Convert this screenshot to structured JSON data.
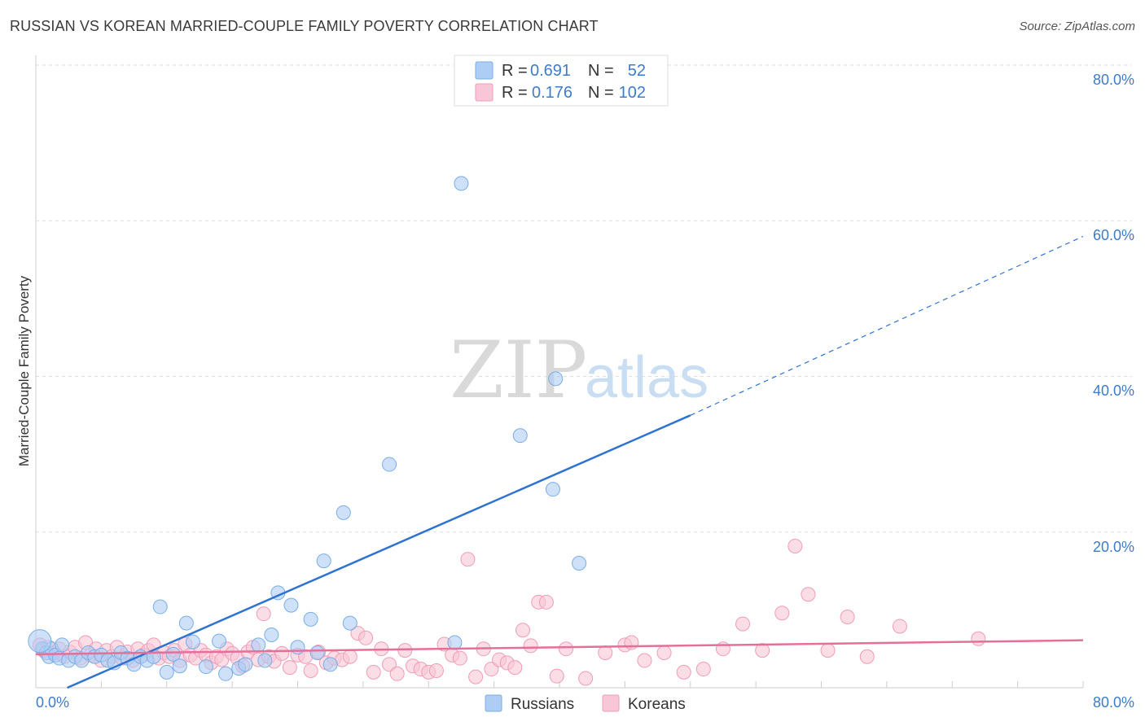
{
  "title": "RUSSIAN VS KOREAN MARRIED-COUPLE FAMILY POVERTY CORRELATION CHART",
  "source": "Source: ZipAtlas.com",
  "watermark": {
    "zip": "ZIP",
    "atlas": "atlas"
  },
  "colors": {
    "russians_fill": "#aecdf4",
    "russians_stroke": "#7aaee6",
    "russians_line": "#2f73d0",
    "koreans_fill": "#f8c6d6",
    "koreans_stroke": "#ef9db7",
    "koreans_line": "#e4709a",
    "tick_text": "#3d7cc9",
    "grid": "#dddddd"
  },
  "legend": {
    "russians": {
      "r_label": "R = ",
      "r_value": "0.691",
      "n_label": "N = ",
      "n_value": "52"
    },
    "koreans": {
      "r_label": "R = ",
      "r_value": "0.176",
      "n_label": "N = ",
      "n_value": "102"
    }
  },
  "chart_data": {
    "type": "scatter",
    "title": "RUSSIAN VS KOREAN MARRIED-COUPLE FAMILY POVERTY CORRELATION CHART",
    "xlabel": "",
    "ylabel": "Married-Couple Family Poverty",
    "xlim": [
      0,
      80
    ],
    "ylim": [
      0,
      80
    ],
    "x_tick_labels": [
      "0.0%",
      "80.0%"
    ],
    "y_tick_labels": [
      "20.0%",
      "40.0%",
      "60.0%",
      "80.0%"
    ],
    "y_ticks": [
      20,
      40,
      60,
      80
    ],
    "series": [
      {
        "name": "Russians",
        "R": 0.691,
        "N": 52,
        "trend": {
          "x0": 2.4,
          "y0": 0.0,
          "x1": 50.0,
          "y1": 35.0,
          "dash_to_x": 80.0,
          "dash_to_y": 58.0
        },
        "points": [
          [
            0.5,
            5.0
          ],
          [
            0.8,
            4.5
          ],
          [
            1.0,
            4.0
          ],
          [
            1.2,
            5.0
          ],
          [
            1.5,
            4.2
          ],
          [
            1.8,
            3.8
          ],
          [
            2.0,
            5.5
          ],
          [
            2.5,
            3.5
          ],
          [
            3.0,
            4.0
          ],
          [
            3.5,
            3.5
          ],
          [
            4.0,
            4.5
          ],
          [
            4.5,
            4.0
          ],
          [
            5.0,
            4.2
          ],
          [
            5.5,
            3.5
          ],
          [
            6.0,
            3.2
          ],
          [
            6.5,
            4.5
          ],
          [
            7.0,
            3.8
          ],
          [
            7.5,
            3.0
          ],
          [
            8.0,
            4.0
          ],
          [
            8.5,
            3.5
          ],
          [
            9.0,
            4.0
          ],
          [
            9.5,
            10.4
          ],
          [
            10.0,
            2.0
          ],
          [
            10.5,
            4.3
          ],
          [
            11.0,
            2.8
          ],
          [
            11.5,
            8.3
          ],
          [
            12.0,
            5.9
          ],
          [
            13.0,
            2.7
          ],
          [
            14.0,
            6.0
          ],
          [
            14.5,
            1.8
          ],
          [
            15.5,
            2.5
          ],
          [
            16.0,
            3.0
          ],
          [
            17.0,
            5.5
          ],
          [
            17.5,
            3.5
          ],
          [
            18.0,
            6.8
          ],
          [
            18.5,
            12.2
          ],
          [
            19.5,
            10.6
          ],
          [
            20.0,
            5.2
          ],
          [
            21.0,
            8.8
          ],
          [
            21.5,
            4.5
          ],
          [
            22.0,
            16.3
          ],
          [
            22.5,
            3.0
          ],
          [
            23.5,
            22.5
          ],
          [
            24.0,
            8.3
          ],
          [
            27.0,
            28.7
          ],
          [
            32.0,
            5.8
          ],
          [
            32.5,
            64.8
          ],
          [
            37.0,
            32.4
          ],
          [
            39.5,
            25.5
          ],
          [
            39.7,
            39.7
          ],
          [
            41.5,
            16.0
          ],
          [
            0.3,
            6.0
          ]
        ]
      },
      {
        "name": "Koreans",
        "R": 0.176,
        "N": 102,
        "trend": {
          "x0": 0.0,
          "y0": 4.3,
          "x1": 80.0,
          "y1": 6.1
        },
        "points": [
          [
            0.3,
            5.5
          ],
          [
            0.6,
            4.8
          ],
          [
            1.0,
            5.2
          ],
          [
            1.4,
            4.5
          ],
          [
            1.8,
            5.0
          ],
          [
            2.2,
            4.0
          ],
          [
            2.6,
            4.6
          ],
          [
            3.0,
            5.2
          ],
          [
            3.4,
            3.8
          ],
          [
            3.8,
            5.8
          ],
          [
            4.2,
            4.2
          ],
          [
            4.6,
            5.0
          ],
          [
            5.0,
            3.5
          ],
          [
            5.4,
            4.8
          ],
          [
            5.8,
            4.0
          ],
          [
            6.2,
            5.2
          ],
          [
            6.6,
            3.8
          ],
          [
            7.0,
            4.6
          ],
          [
            7.4,
            3.5
          ],
          [
            7.8,
            5.0
          ],
          [
            8.2,
            4.2
          ],
          [
            8.6,
            4.8
          ],
          [
            9.0,
            5.5
          ],
          [
            9.4,
            3.8
          ],
          [
            9.8,
            4.5
          ],
          [
            10.2,
            4.0
          ],
          [
            10.6,
            4.8
          ],
          [
            11.0,
            3.5
          ],
          [
            11.4,
            5.6
          ],
          [
            11.8,
            4.2
          ],
          [
            12.2,
            3.8
          ],
          [
            12.6,
            4.8
          ],
          [
            13.0,
            4.2
          ],
          [
            13.4,
            3.2
          ],
          [
            13.8,
            4.0
          ],
          [
            14.2,
            3.6
          ],
          [
            14.6,
            5.0
          ],
          [
            15.0,
            4.4
          ],
          [
            15.4,
            3.8
          ],
          [
            15.8,
            2.8
          ],
          [
            16.2,
            4.6
          ],
          [
            16.6,
            5.2
          ],
          [
            17.0,
            3.6
          ],
          [
            17.4,
            9.5
          ],
          [
            17.8,
            4.0
          ],
          [
            18.2,
            3.4
          ],
          [
            18.8,
            4.4
          ],
          [
            19.4,
            2.6
          ],
          [
            20.0,
            4.2
          ],
          [
            20.6,
            4.0
          ],
          [
            21.0,
            2.2
          ],
          [
            21.6,
            4.6
          ],
          [
            22.2,
            3.2
          ],
          [
            22.8,
            3.8
          ],
          [
            23.4,
            3.6
          ],
          [
            24.0,
            4.0
          ],
          [
            24.6,
            7.0
          ],
          [
            25.2,
            6.4
          ],
          [
            25.8,
            2.0
          ],
          [
            26.4,
            5.0
          ],
          [
            27.0,
            3.0
          ],
          [
            27.6,
            1.8
          ],
          [
            28.2,
            4.8
          ],
          [
            28.8,
            2.8
          ],
          [
            29.4,
            2.4
          ],
          [
            30.0,
            2.0
          ],
          [
            30.6,
            2.2
          ],
          [
            31.2,
            5.6
          ],
          [
            31.8,
            4.2
          ],
          [
            32.4,
            3.8
          ],
          [
            33.0,
            16.5
          ],
          [
            33.6,
            1.4
          ],
          [
            34.2,
            5.0
          ],
          [
            34.8,
            2.4
          ],
          [
            35.4,
            3.6
          ],
          [
            36.0,
            3.2
          ],
          [
            36.6,
            2.6
          ],
          [
            37.2,
            7.4
          ],
          [
            37.8,
            5.4
          ],
          [
            38.4,
            11.0
          ],
          [
            39.0,
            11.0
          ],
          [
            40.5,
            5.0
          ],
          [
            42.0,
            1.2
          ],
          [
            43.5,
            4.5
          ],
          [
            45.0,
            5.5
          ],
          [
            46.5,
            3.5
          ],
          [
            48.0,
            4.5
          ],
          [
            49.5,
            2.0
          ],
          [
            51.0,
            2.4
          ],
          [
            52.5,
            5.0
          ],
          [
            54.0,
            8.2
          ],
          [
            55.5,
            4.8
          ],
          [
            57.0,
            9.6
          ],
          [
            58.0,
            18.2
          ],
          [
            59.0,
            12.0
          ],
          [
            60.5,
            4.8
          ],
          [
            62.0,
            9.1
          ],
          [
            63.5,
            4.0
          ],
          [
            66.0,
            7.9
          ],
          [
            72.0,
            6.3
          ],
          [
            39.8,
            1.5
          ],
          [
            45.5,
            5.8
          ]
        ]
      }
    ]
  },
  "bottom_legend": {
    "russians": "Russians",
    "koreans": "Koreans"
  }
}
